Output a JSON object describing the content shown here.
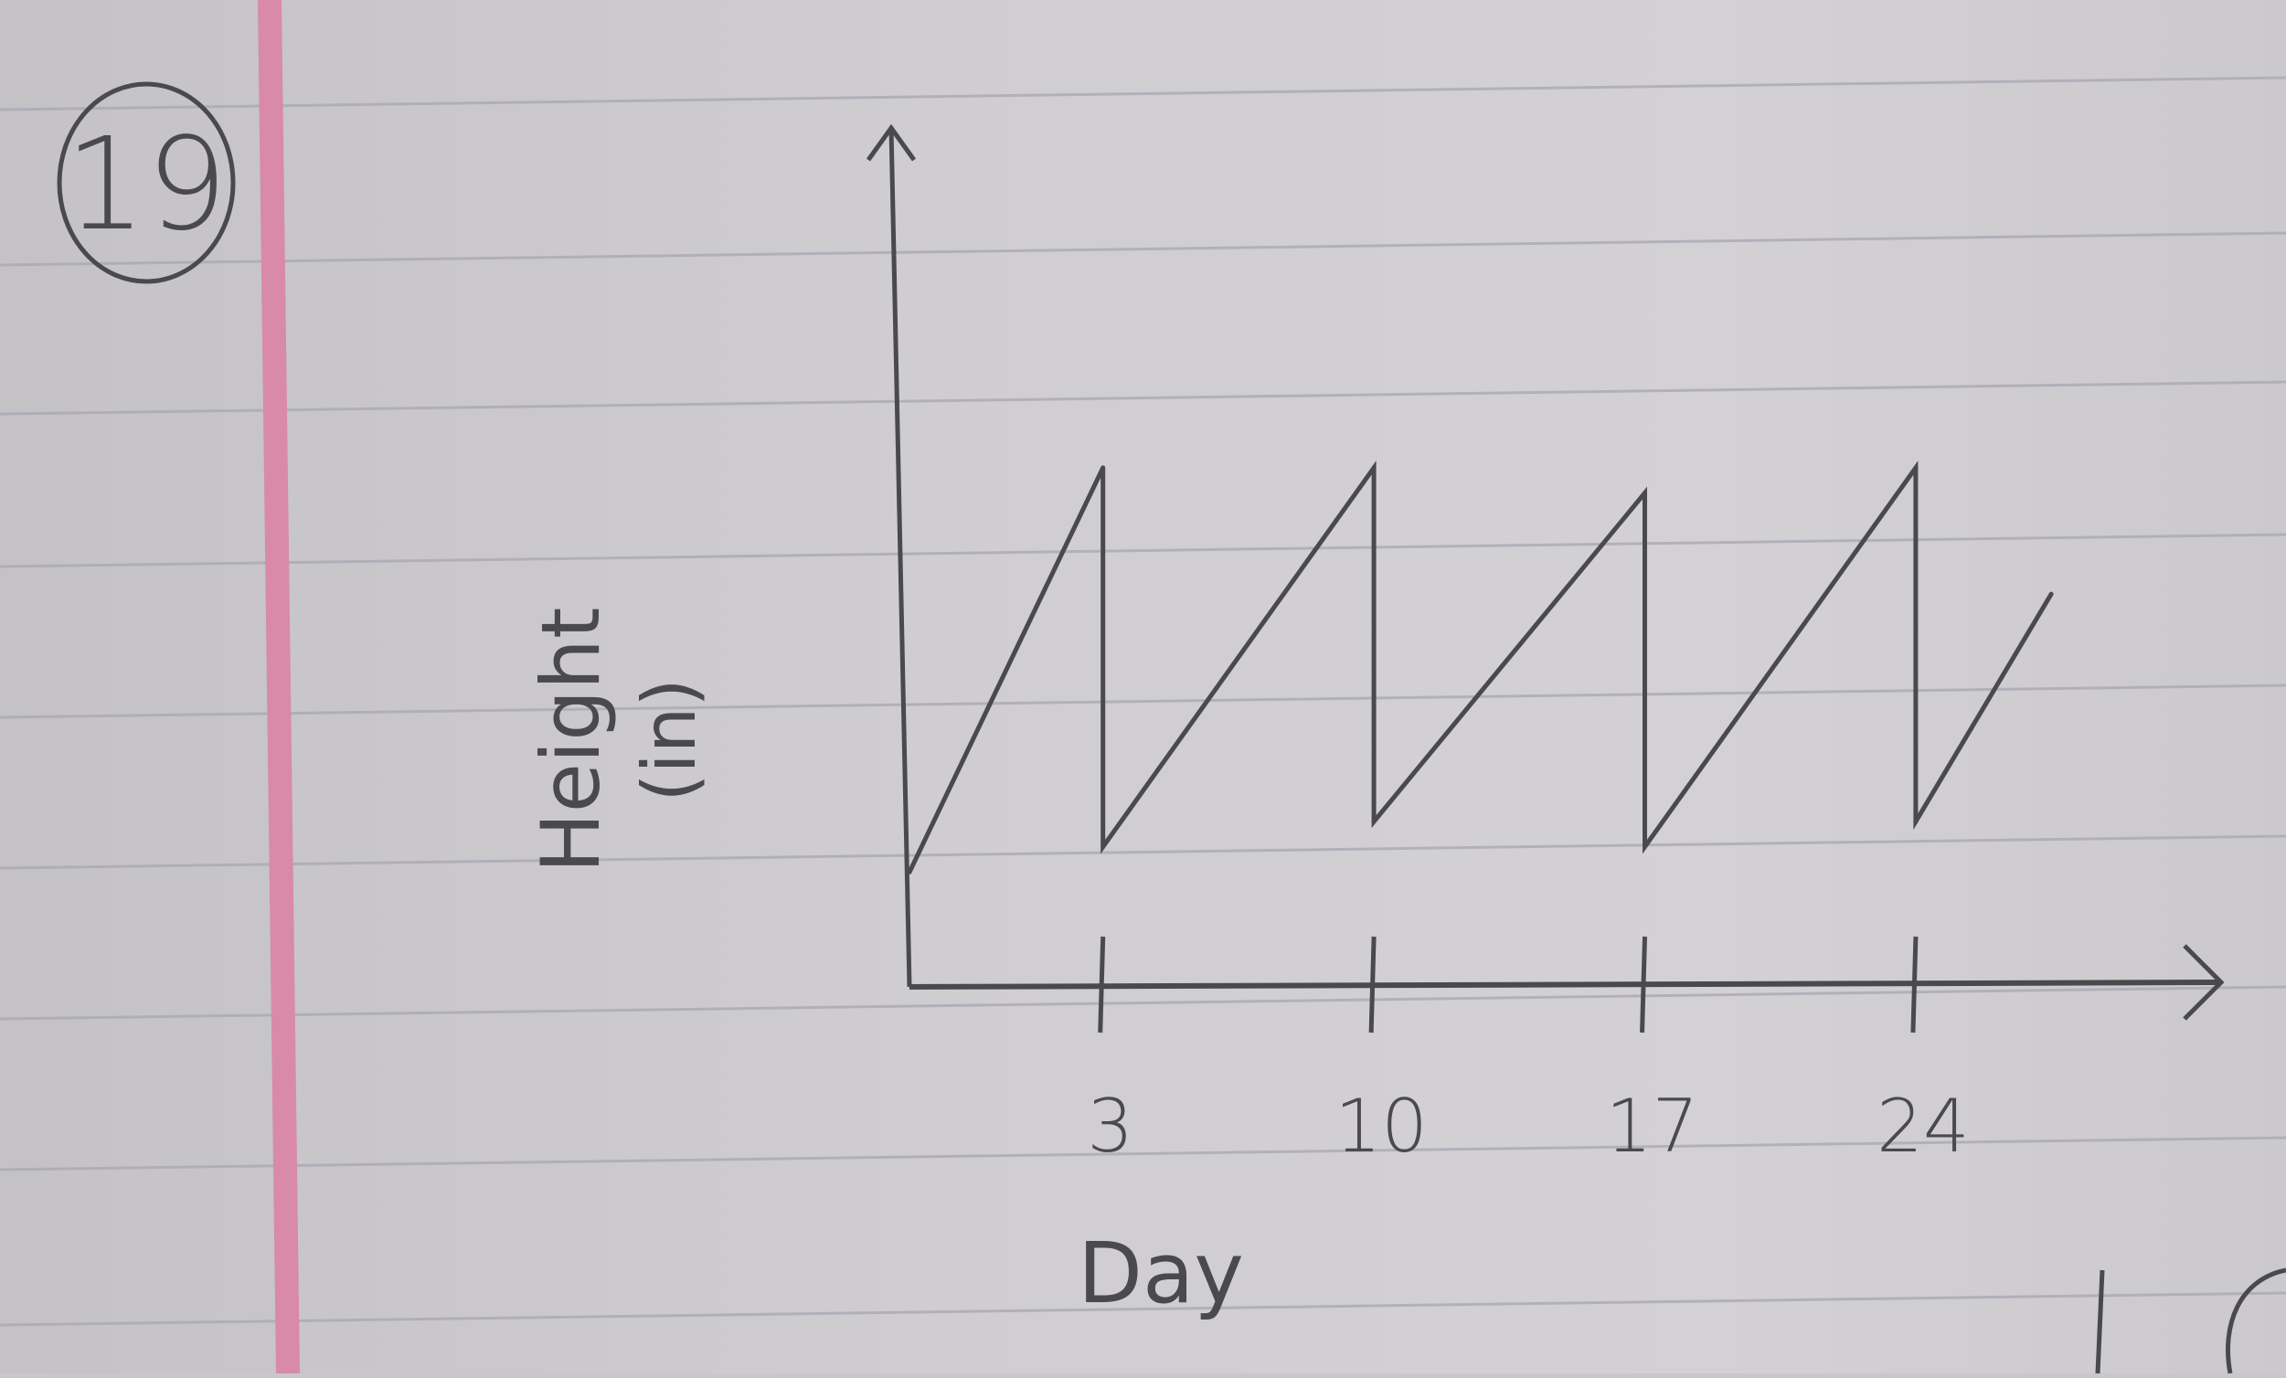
{
  "problem_number": "19",
  "colors": {
    "paper": "#cfcdd0",
    "rule_line": "#aaaab4",
    "margin_line": "#d88aa8",
    "pencil": "#4a4a4c"
  },
  "chart_data": {
    "type": "line",
    "title": "",
    "xlabel": "Day",
    "ylabel": "Height (in)",
    "ylabel_lines": [
      "Height",
      "(in)"
    ],
    "x_ticks": [
      3,
      10,
      17,
      24
    ],
    "x_tick_labels": [
      "3",
      "10",
      "17",
      "24"
    ],
    "xlim": [
      -2,
      30
    ],
    "ylim": [
      0,
      1.6
    ],
    "grid": false,
    "series": [
      {
        "x": [
          -2,
          3,
          3,
          10,
          10,
          17,
          17,
          24,
          24,
          27.5
        ],
        "y": [
          0.2,
          1.0,
          0.25,
          1.0,
          0.3,
          0.95,
          0.25,
          1.0,
          0.3,
          0.75
        ]
      }
    ]
  }
}
